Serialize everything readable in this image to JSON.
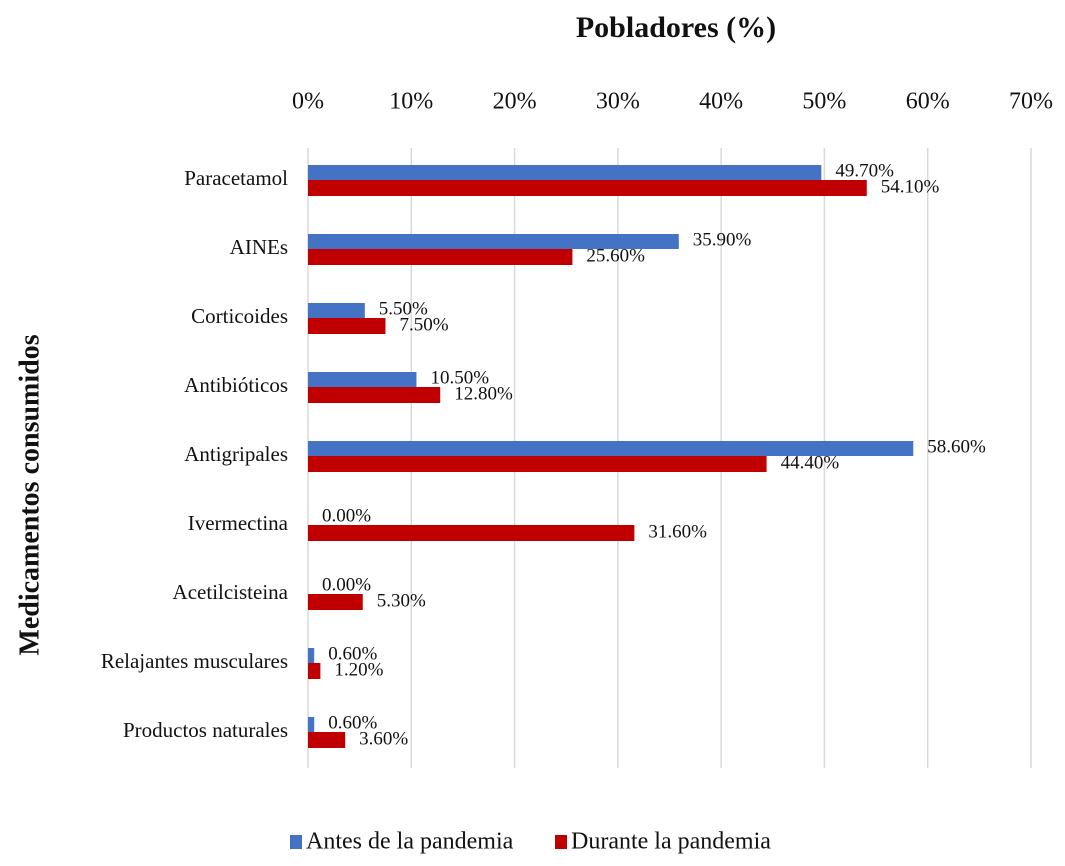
{
  "chart_data": {
    "type": "barh",
    "title": "Pobladores (%)",
    "ylabel": "Medicamentos consumidos",
    "categories": [
      "Paracetamol",
      "AINEs",
      "Corticoides",
      "Antibióticos",
      "Antigripales",
      "Ivermectina",
      "Acetilcisteina",
      "Relajantes musculares",
      "Productos naturales"
    ],
    "series": [
      {
        "name": "Antes de la pandemia",
        "color": "#4472c4",
        "values": [
          49.7,
          35.9,
          5.5,
          10.5,
          58.6,
          0,
          0,
          0.6,
          0.6
        ],
        "value_labels": [
          "49.70%",
          "35.90%",
          "5.50%",
          "10.50%",
          "58.60%",
          "0.00%",
          "0.00%",
          "0.60%",
          "0.60%"
        ]
      },
      {
        "name": "Durante la pandemia",
        "color": "#c00000",
        "values": [
          54.1,
          25.6,
          7.5,
          12.8,
          44.4,
          31.6,
          5.3,
          1.2,
          3.6
        ],
        "value_labels": [
          "54.10%",
          "25.60%",
          "7.50%",
          "12.80%",
          "44.40%",
          "31.60%",
          "5.30%",
          "1.20%",
          "3.60%"
        ]
      }
    ],
    "xlim": [
      0,
      70
    ],
    "xticks": [
      {
        "value": 0,
        "label": "0%"
      },
      {
        "value": 10,
        "label": "10%"
      },
      {
        "value": 20,
        "label": "20%"
      },
      {
        "value": 30,
        "label": "30%"
      },
      {
        "value": 40,
        "label": "40%"
      },
      {
        "value": 50,
        "label": "50%"
      },
      {
        "value": 60,
        "label": "60%"
      },
      {
        "value": 70,
        "label": "70%"
      }
    ],
    "grid": true,
    "legend": "bottom"
  }
}
